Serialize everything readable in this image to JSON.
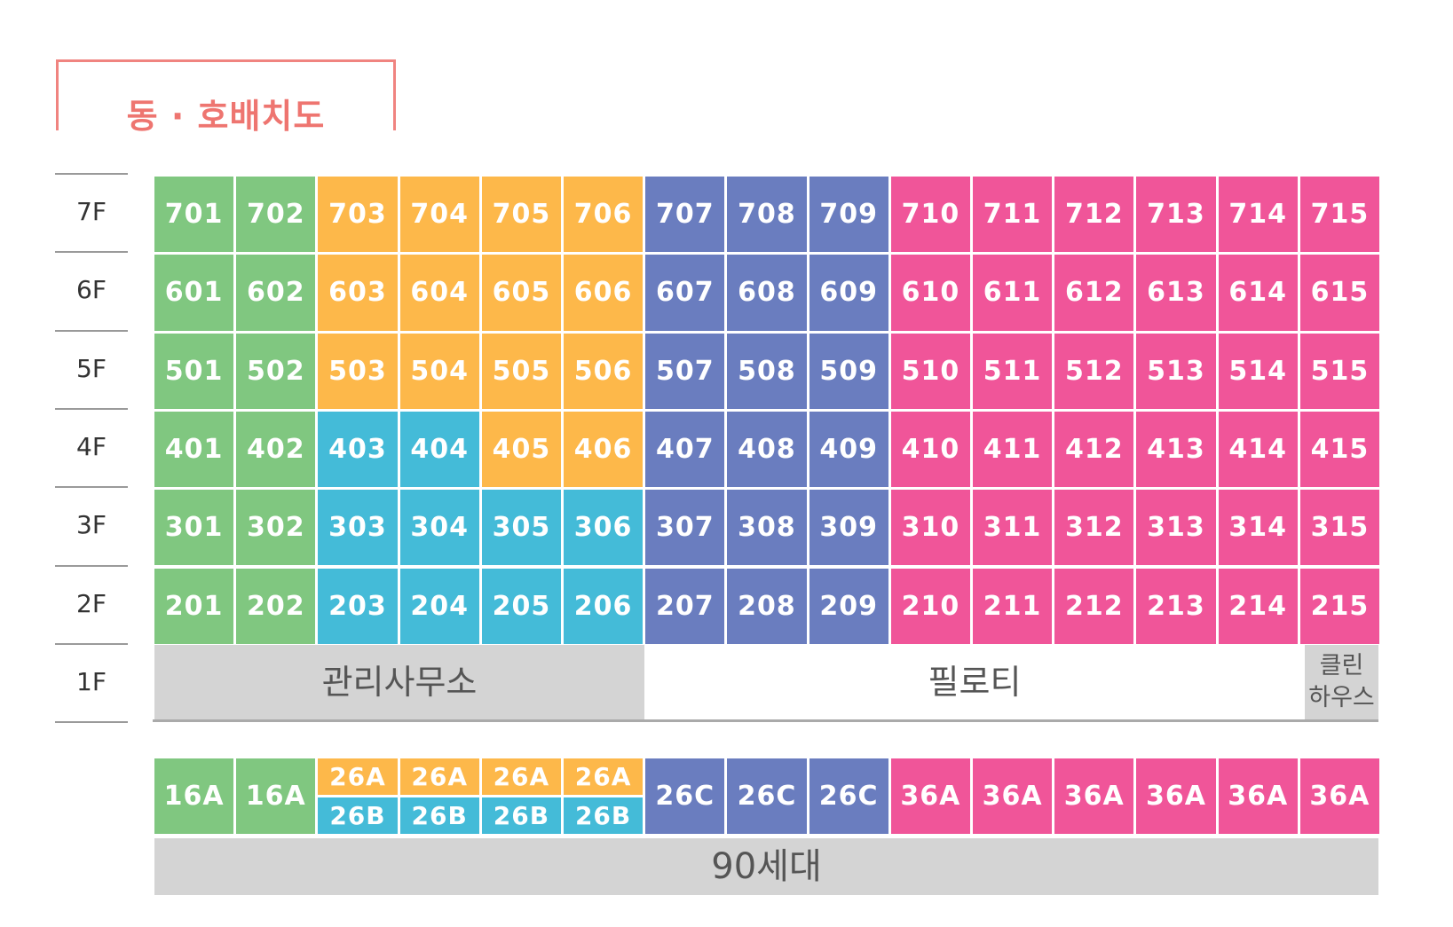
{
  "title": "동 · 호배치도",
  "floors": [
    "7F",
    "6F",
    "5F",
    "4F",
    "3F",
    "2F",
    "1F"
  ],
  "colors": {
    "green": "#80C780",
    "orange": "#FDB84A",
    "cyan": "#44BBD8",
    "blue": "#6A7DBF",
    "pink": "#F05599",
    "gray": "#D4D4D4"
  },
  "rows": [
    {
      "floor": "7F",
      "cells": [
        {
          "label": "701",
          "color": "green"
        },
        {
          "label": "702",
          "color": "green"
        },
        {
          "label": "703",
          "color": "orange"
        },
        {
          "label": "704",
          "color": "orange"
        },
        {
          "label": "705",
          "color": "orange"
        },
        {
          "label": "706",
          "color": "orange"
        },
        {
          "label": "707",
          "color": "blue"
        },
        {
          "label": "708",
          "color": "blue"
        },
        {
          "label": "709",
          "color": "blue"
        },
        {
          "label": "710",
          "color": "pink"
        },
        {
          "label": "711",
          "color": "pink"
        },
        {
          "label": "712",
          "color": "pink"
        },
        {
          "label": "713",
          "color": "pink"
        },
        {
          "label": "714",
          "color": "pink"
        },
        {
          "label": "715",
          "color": "pink"
        }
      ]
    },
    {
      "floor": "6F",
      "cells": [
        {
          "label": "601",
          "color": "green"
        },
        {
          "label": "602",
          "color": "green"
        },
        {
          "label": "603",
          "color": "orange"
        },
        {
          "label": "604",
          "color": "orange"
        },
        {
          "label": "605",
          "color": "orange"
        },
        {
          "label": "606",
          "color": "orange"
        },
        {
          "label": "607",
          "color": "blue"
        },
        {
          "label": "608",
          "color": "blue"
        },
        {
          "label": "609",
          "color": "blue"
        },
        {
          "label": "610",
          "color": "pink"
        },
        {
          "label": "611",
          "color": "pink"
        },
        {
          "label": "612",
          "color": "pink"
        },
        {
          "label": "613",
          "color": "pink"
        },
        {
          "label": "614",
          "color": "pink"
        },
        {
          "label": "615",
          "color": "pink"
        }
      ]
    },
    {
      "floor": "5F",
      "cells": [
        {
          "label": "501",
          "color": "green"
        },
        {
          "label": "502",
          "color": "green"
        },
        {
          "label": "503",
          "color": "orange"
        },
        {
          "label": "504",
          "color": "orange"
        },
        {
          "label": "505",
          "color": "orange"
        },
        {
          "label": "506",
          "color": "orange"
        },
        {
          "label": "507",
          "color": "blue"
        },
        {
          "label": "508",
          "color": "blue"
        },
        {
          "label": "509",
          "color": "blue"
        },
        {
          "label": "510",
          "color": "pink"
        },
        {
          "label": "511",
          "color": "pink"
        },
        {
          "label": "512",
          "color": "pink"
        },
        {
          "label": "513",
          "color": "pink"
        },
        {
          "label": "514",
          "color": "pink"
        },
        {
          "label": "515",
          "color": "pink"
        }
      ]
    },
    {
      "floor": "4F",
      "cells": [
        {
          "label": "401",
          "color": "green"
        },
        {
          "label": "402",
          "color": "green"
        },
        {
          "label": "403",
          "color": "cyan"
        },
        {
          "label": "404",
          "color": "cyan"
        },
        {
          "label": "405",
          "color": "orange"
        },
        {
          "label": "406",
          "color": "orange"
        },
        {
          "label": "407",
          "color": "blue"
        },
        {
          "label": "408",
          "color": "blue"
        },
        {
          "label": "409",
          "color": "blue"
        },
        {
          "label": "410",
          "color": "pink"
        },
        {
          "label": "411",
          "color": "pink"
        },
        {
          "label": "412",
          "color": "pink"
        },
        {
          "label": "413",
          "color": "pink"
        },
        {
          "label": "414",
          "color": "pink"
        },
        {
          "label": "415",
          "color": "pink"
        }
      ]
    },
    {
      "floor": "3F",
      "cells": [
        {
          "label": "301",
          "color": "green"
        },
        {
          "label": "302",
          "color": "green"
        },
        {
          "label": "303",
          "color": "cyan"
        },
        {
          "label": "304",
          "color": "cyan"
        },
        {
          "label": "305",
          "color": "cyan"
        },
        {
          "label": "306",
          "color": "cyan"
        },
        {
          "label": "307",
          "color": "blue"
        },
        {
          "label": "308",
          "color": "blue"
        },
        {
          "label": "309",
          "color": "blue"
        },
        {
          "label": "310",
          "color": "pink"
        },
        {
          "label": "311",
          "color": "pink"
        },
        {
          "label": "312",
          "color": "pink"
        },
        {
          "label": "313",
          "color": "pink"
        },
        {
          "label": "314",
          "color": "pink"
        },
        {
          "label": "315",
          "color": "pink"
        }
      ]
    },
    {
      "floor": "2F",
      "cells": [
        {
          "label": "201",
          "color": "green"
        },
        {
          "label": "202",
          "color": "green"
        },
        {
          "label": "203",
          "color": "cyan"
        },
        {
          "label": "204",
          "color": "cyan"
        },
        {
          "label": "205",
          "color": "cyan"
        },
        {
          "label": "206",
          "color": "cyan"
        },
        {
          "label": "207",
          "color": "blue"
        },
        {
          "label": "208",
          "color": "blue"
        },
        {
          "label": "209",
          "color": "blue"
        },
        {
          "label": "210",
          "color": "pink"
        },
        {
          "label": "211",
          "color": "pink"
        },
        {
          "label": "212",
          "color": "pink"
        },
        {
          "label": "213",
          "color": "pink"
        },
        {
          "label": "214",
          "color": "pink"
        },
        {
          "label": "215",
          "color": "pink"
        }
      ]
    }
  ],
  "ground_floor": {
    "management_office": "관리사무소",
    "piloti": "필로티",
    "clean_house_line1": "클린",
    "clean_house_line2": "하우스"
  },
  "types": [
    {
      "label": "16A",
      "color": "green"
    },
    {
      "label": "16A",
      "color": "green"
    },
    {
      "top": "26A",
      "bottom": "26B"
    },
    {
      "top": "26A",
      "bottom": "26B"
    },
    {
      "top": "26A",
      "bottom": "26B"
    },
    {
      "top": "26A",
      "bottom": "26B"
    },
    {
      "label": "26C",
      "color": "blue"
    },
    {
      "label": "26C",
      "color": "blue"
    },
    {
      "label": "26C",
      "color": "blue"
    },
    {
      "label": "36A",
      "color": "pink"
    },
    {
      "label": "36A",
      "color": "pink"
    },
    {
      "label": "36A",
      "color": "pink"
    },
    {
      "label": "36A",
      "color": "pink"
    },
    {
      "label": "36A",
      "color": "pink"
    },
    {
      "label": "36A",
      "color": "pink"
    }
  ],
  "total": "90세대"
}
